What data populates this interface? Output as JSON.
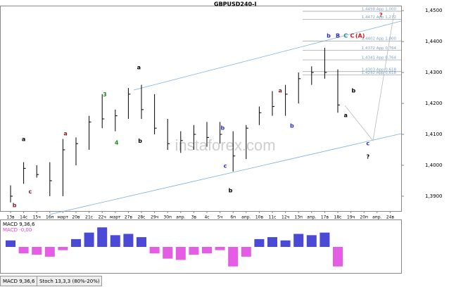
{
  "chart_data": {
    "type": "ohlc",
    "title": "GBPUSD240-I",
    "categories": [
      "13в",
      "14с",
      "15ч",
      "16п",
      "март",
      "20в",
      "21с",
      "22ч",
      "март",
      "27в",
      "28с",
      "29ч",
      "30п",
      "апр.",
      "3в",
      "4с",
      "5ч",
      "6п",
      "апр.",
      "10в",
      "11с",
      "12ч",
      "13п",
      "апр.",
      "17в",
      "18с",
      "19ч",
      "20п",
      "апр.",
      "24в"
    ],
    "high": [
      1.3935,
      1.401,
      1.4,
      1.401,
      1.4085,
      1.409,
      1.416,
      1.423,
      1.418,
      1.425,
      1.426,
      1.423,
      1.415,
      1.411,
      1.413,
      1.414,
      1.414,
      1.411,
      1.413,
      1.419,
      1.424,
      1.426,
      1.43,
      1.432,
      1.438,
      1.431,
      null,
      null,
      null,
      null
    ],
    "low": [
      1.388,
      1.394,
      1.396,
      1.39,
      1.39,
      1.4,
      1.405,
      1.412,
      1.411,
      1.415,
      1.415,
      1.41,
      1.405,
      1.404,
      1.405,
      1.406,
      1.407,
      1.398,
      1.402,
      1.413,
      1.416,
      1.416,
      1.42,
      1.426,
      1.428,
      1.417,
      null,
      null,
      null,
      null
    ],
    "close": [
      1.39,
      1.399,
      1.397,
      1.395,
      1.405,
      1.407,
      1.414,
      1.415,
      1.416,
      1.423,
      1.418,
      1.412,
      1.407,
      1.408,
      1.41,
      1.409,
      1.41,
      1.403,
      1.412,
      1.417,
      1.419,
      1.423,
      1.428,
      1.43,
      1.43,
      1.4195,
      null,
      null,
      null,
      null
    ],
    "color": "#000000",
    "ylim": [
      1.3852,
      1.4514
    ],
    "yticks": [
      {
        "value": 1.39,
        "label": "1,3900"
      },
      {
        "value": 1.4,
        "label": "1,4000"
      },
      {
        "value": 1.41,
        "label": "1,4100"
      },
      {
        "value": 1.42,
        "label": "1,4200"
      },
      {
        "value": 1.43,
        "label": "1,4300"
      },
      {
        "value": 1.44,
        "label": "1,4400"
      },
      {
        "value": 1.45,
        "label": "1,4500"
      }
    ],
    "levels": [
      {
        "value": 1.4498,
        "label": "1,4498 App 1,000"
      },
      {
        "value": 1.4472,
        "label": "1,4472 App 1,272"
      },
      {
        "value": 1.4402,
        "label": "1,4402 App 1,000"
      },
      {
        "value": 1.4372,
        "label": "1,4372 App 0,764"
      },
      {
        "value": 1.4341,
        "label": "1,4341 App 0,764"
      },
      {
        "value": 1.4303,
        "label": "1,4303 App 0,618"
      },
      {
        "value": 1.4292,
        "label": "1,4292 App 0,618"
      }
    ],
    "annotations": [
      {
        "text": "a",
        "color": "#000000",
        "at": 1,
        "price": 1.4084
      },
      {
        "text": "b",
        "color": "#8b1a1a",
        "at": 0.3,
        "price": 1.387
      },
      {
        "text": "c",
        "color": "#8b1a1a",
        "at": 1.5,
        "price": 1.3914
      },
      {
        "text": "a",
        "color": "#8b1a1a",
        "at": 4.2,
        "price": 1.4102
      },
      {
        "text": "3",
        "color": "#1a8a1a",
        "at": 7.2,
        "price": 1.4228
      },
      {
        "text": "4",
        "color": "#1a8a1a",
        "at": 8.1,
        "price": 1.4073
      },
      {
        "text": "a",
        "color": "#000000",
        "at": 9.8,
        "price": 1.4316
      },
      {
        "text": "b",
        "color": "#000000",
        "at": 9.9,
        "price": 1.4078
      },
      {
        "text": "b",
        "color": "#2a2ad0",
        "at": 16.2,
        "price": 1.412
      },
      {
        "text": "c",
        "color": "#2a2ad0",
        "at": 16.4,
        "price": 1.3998
      },
      {
        "text": "b",
        "color": "#000000",
        "at": 16.8,
        "price": 1.3918
      },
      {
        "text": "a",
        "color": "#8b1a1a",
        "at": 20.6,
        "price": 1.4241
      },
      {
        "text": "b",
        "color": "#2a2ad0",
        "at": 21.5,
        "price": 1.4127
      },
      {
        "text": "b",
        "color": "#2a2ad0",
        "at": 24.3,
        "price": 1.4418
      },
      {
        "text": "B",
        "color": "#2a2ad0",
        "at": 25,
        "price": 1.4418
      },
      {
        "text": "C",
        "color": "#1a8a8a",
        "at": 25.6,
        "price": 1.4418
      },
      {
        "text": "C",
        "color": "#d01a1a",
        "at": 26.1,
        "price": 1.4418
      },
      {
        "text": "(A)",
        "color": "#d01a1a",
        "at": 26.7,
        "price": 1.4418
      },
      {
        "text": "a",
        "color": "#000000",
        "at": 25.6,
        "price": 1.4161
      },
      {
        "text": "b",
        "color": "#000000",
        "at": 26.2,
        "price": 1.4241
      },
      {
        "text": "c",
        "color": "#2a2ad0",
        "at": 27.3,
        "price": 1.407
      },
      {
        "text": "?",
        "color": "#d01a1a",
        "at": 28.3,
        "price": 1.4486
      },
      {
        "text": "?",
        "color": "#000000",
        "at": 27.3,
        "price": 1.4027
      }
    ],
    "macd": {
      "label": "MACD 9,36,6",
      "value_label": "MACD -0,00",
      "ylim": [
        -0.004,
        0.004
      ],
      "colors": [
        "#2a2ad0",
        "#e040e0"
      ],
      "values": [
        0.001,
        -0.001,
        -0.0012,
        -0.0015,
        -0.0005,
        0.0012,
        0.0022,
        0.003,
        0.0018,
        0.002,
        0.0015,
        -0.001,
        -0.0018,
        -0.002,
        -0.0012,
        -0.001,
        -0.0005,
        -0.003,
        -0.0015,
        0.0012,
        0.0015,
        0.001,
        0.002,
        0.0018,
        0.0022,
        -0.003,
        null,
        null,
        null,
        null
      ]
    },
    "tabs": [
      "MACD 9,36,6",
      "Stoch 13,3,3 (80%-20%)"
    ],
    "watermark": "instaforex.com"
  }
}
